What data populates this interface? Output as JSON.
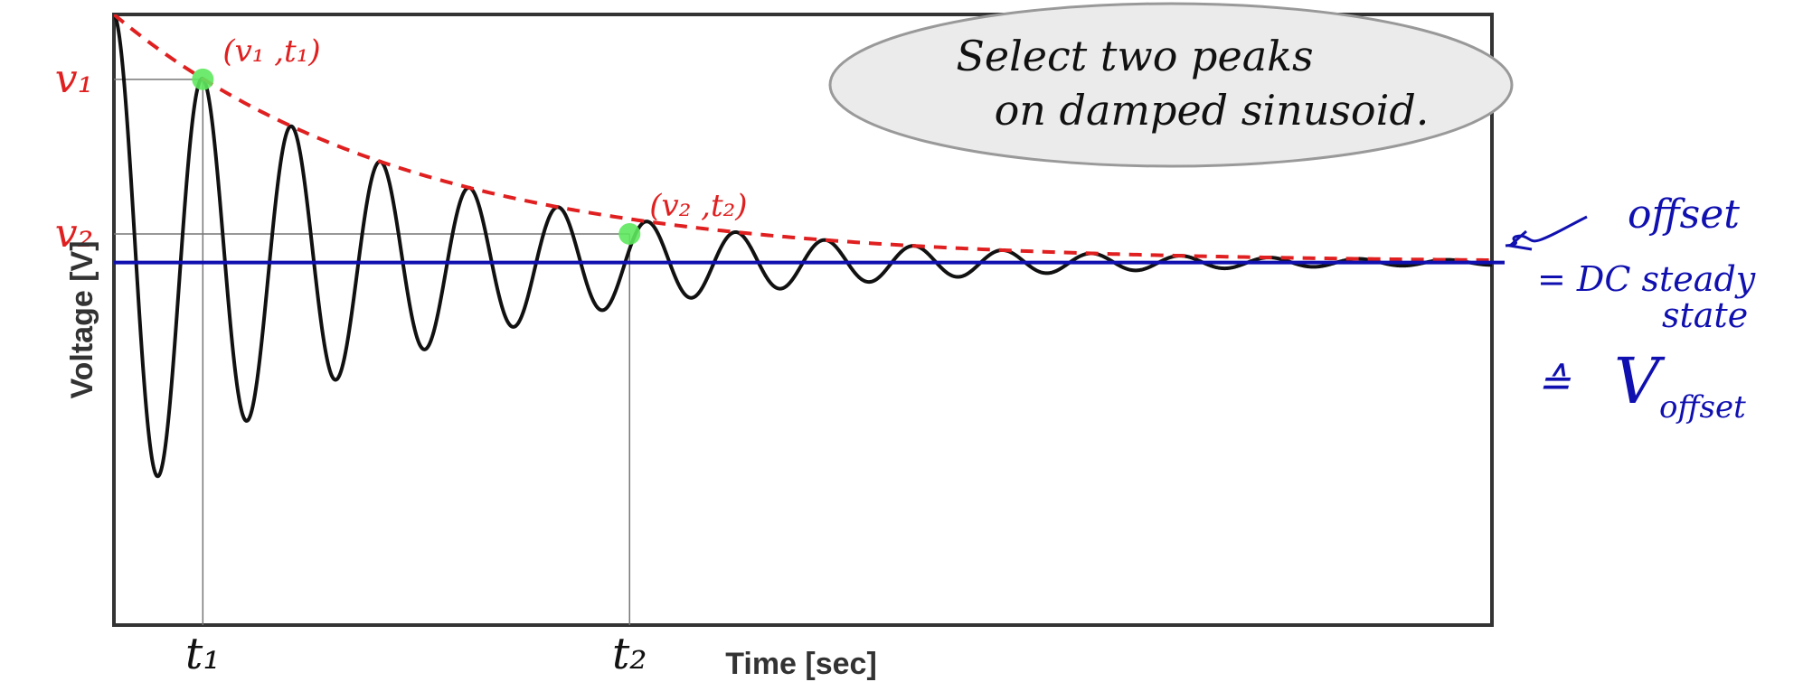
{
  "chart_data": {
    "type": "line",
    "title": "",
    "xlabel": "Time [sec]",
    "ylabel": "Voltage [V]",
    "xlim": [
      0,
      15.5
    ],
    "ylim": [
      -1.6,
      1.6
    ],
    "grid": false,
    "signal": {
      "offset": 0.3,
      "initial_amplitude": 1.3,
      "damping": 0.3,
      "period": 1.0,
      "x_start": 0,
      "x_end": 15.5
    },
    "envelope": {
      "style": "dashed",
      "color": "#e02020"
    },
    "offset_line": {
      "value": 0.3,
      "color": "#1010b0"
    },
    "selected_peaks": [
      {
        "x": 1.0,
        "y": 1.26,
        "label": "(v₁ ,t₁)",
        "tick_label": "t₁",
        "y_tick_label": "v₁"
      },
      {
        "x": 5.8,
        "y": 0.45,
        "label": "(v₂ ,t₂)",
        "tick_label": "t₂",
        "y_tick_label": "v₂"
      }
    ]
  },
  "annotations": {
    "callout_line1": "Select two peaks",
    "callout_line2": "on damped sinusoid.",
    "offset_label": "offset",
    "dc_line1": "= DC steady",
    "dc_line2": "state",
    "voffset_prefix": "≙",
    "voffset_main": "V",
    "voffset_sub": "offset"
  },
  "colors": {
    "signal": "#111111",
    "envelope": "#e02020",
    "offset": "#1010b0",
    "peak_marker": "#5ee85e",
    "frame": "#333333"
  }
}
